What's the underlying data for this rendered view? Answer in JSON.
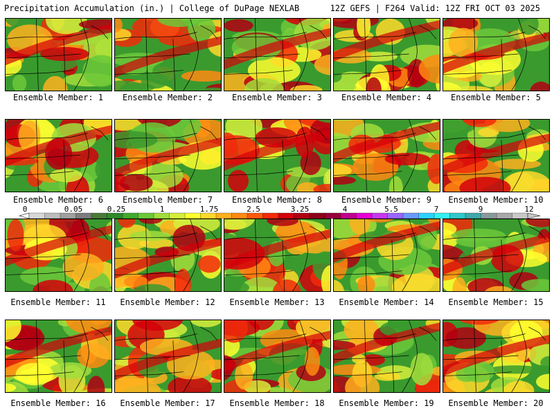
{
  "header": {
    "title": "Precipitation Accumulation (in.) | College of DuPage NEXLAB",
    "run_info": "12Z GEFS | F264 Valid: 12Z FRI OCT 03 2025"
  },
  "member_label_prefix": "Ensemble Member:",
  "members": [
    1,
    2,
    3,
    4,
    5,
    6,
    7,
    8,
    9,
    10,
    11,
    12,
    13,
    14,
    15,
    16,
    17,
    18,
    19,
    20
  ],
  "colorbar": {
    "tick_labels": [
      "0",
      "0.05",
      "0.25",
      "1",
      "1.75",
      "2.5",
      "3.25",
      "4",
      "5.5",
      "7",
      "9",
      "12"
    ],
    "colors": [
      "#d8d8d8",
      "#bdbdbd",
      "#a0a0a0",
      "#7d7d7d",
      "#4a7a3a",
      "#2f8a2b",
      "#43a92f",
      "#6cc83a",
      "#a3dd3c",
      "#d6ee3c",
      "#ffff2e",
      "#ffd92a",
      "#ffb01e",
      "#ff8a12",
      "#ff5a0c",
      "#f22a0a",
      "#d4000a",
      "#b10012",
      "#8e0018",
      "#98003a",
      "#c0008e",
      "#e600d4",
      "#c638f0",
      "#9a66ff",
      "#6a9aff",
      "#2ed2ff",
      "#33f0f0",
      "#2fc8c8",
      "#3fa8a8",
      "#8a9a9a",
      "#a8a8a8",
      "#c8c8c8"
    ]
  }
}
